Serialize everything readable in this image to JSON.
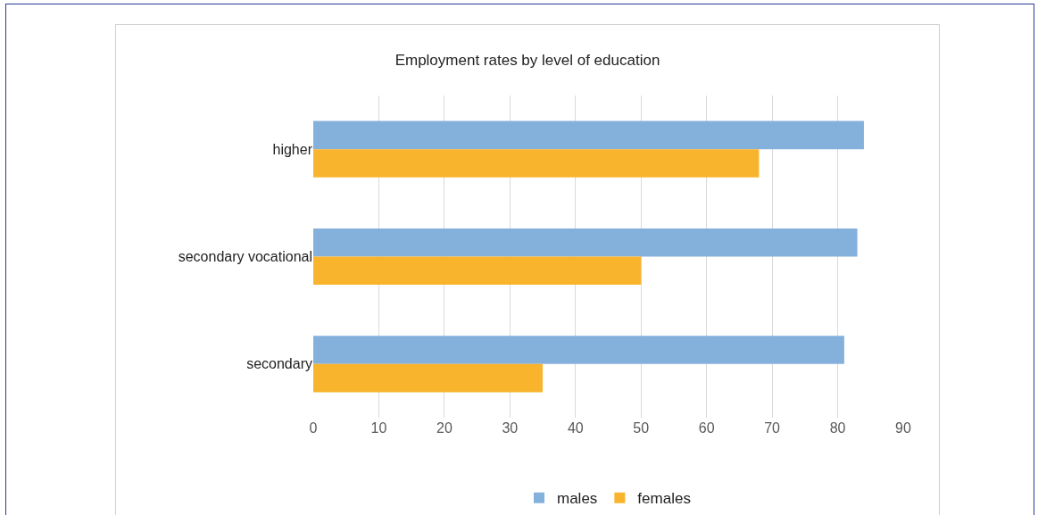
{
  "chart_data": {
    "type": "bar",
    "orientation": "horizontal",
    "title": "Employment rates by level of education",
    "categories": [
      "higher",
      "secondary vocational",
      "secondary"
    ],
    "series": [
      {
        "name": "males",
        "color": "#84b0dc",
        "values": [
          84,
          83,
          81
        ]
      },
      {
        "name": "females",
        "color": "#f9b42d",
        "values": [
          68,
          50,
          35
        ]
      }
    ],
    "xlim": [
      0,
      90
    ],
    "xticks": [
      0,
      10,
      20,
      30,
      40,
      50,
      60,
      70,
      80,
      90
    ],
    "grid": "x",
    "legend": "bottom"
  }
}
